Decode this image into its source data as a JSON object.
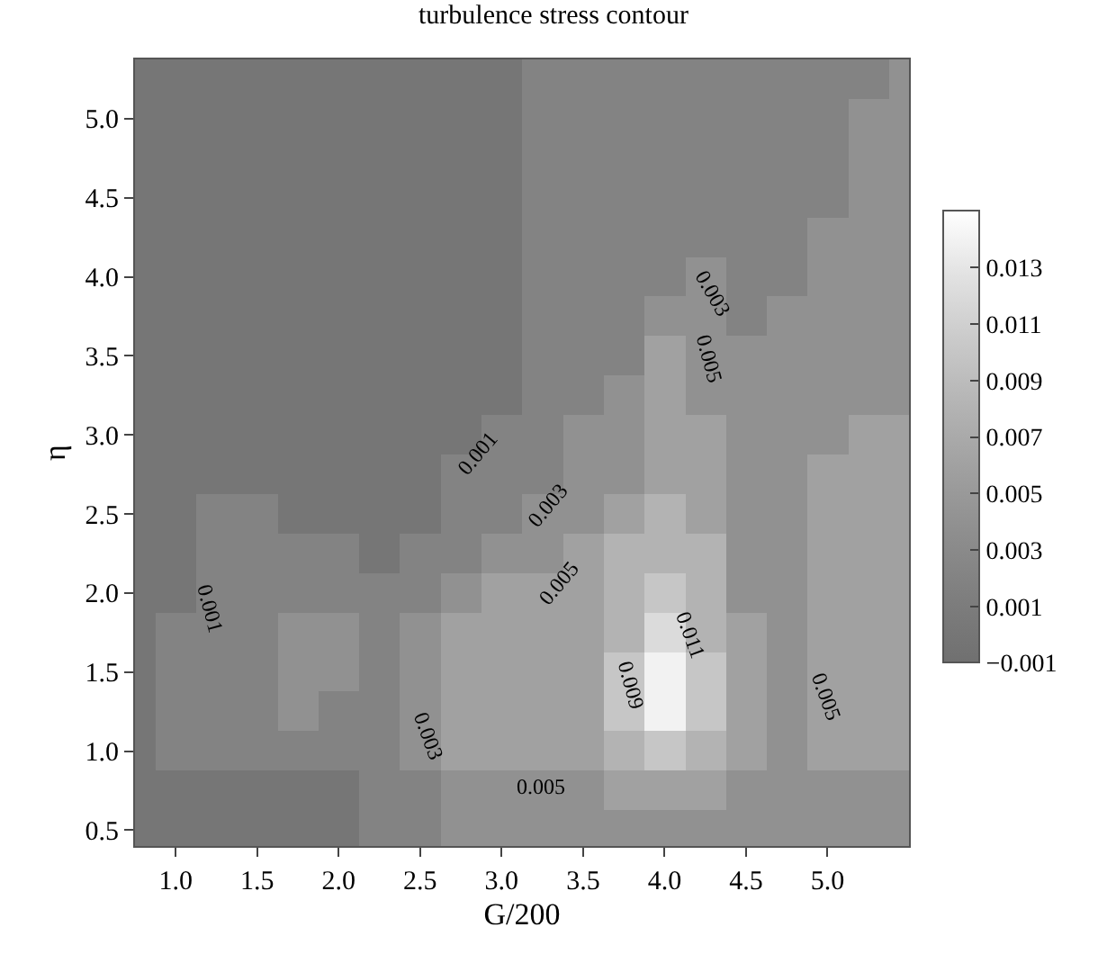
{
  "chart_data": {
    "type": "heatmap",
    "title": "turbulence stress contour",
    "xlabel": "G/200",
    "ylabel": "η",
    "x": [
      0.75,
      1.0,
      1.25,
      1.5,
      1.75,
      2.0,
      2.25,
      2.5,
      2.75,
      3.0,
      3.25,
      3.5,
      3.75,
      4.0,
      4.25,
      4.5,
      4.75,
      5.0,
      5.25,
      5.5
    ],
    "y": [
      5.25,
      5.0,
      4.75,
      4.5,
      4.25,
      4.0,
      3.75,
      3.5,
      3.25,
      3.0,
      2.75,
      2.5,
      2.25,
      2.0,
      1.75,
      1.5,
      1.25,
      1.0,
      0.75,
      0.5
    ],
    "annotations": [
      "0.001",
      "0.001",
      "0.003",
      "0.005",
      "0.003",
      "0.005",
      "0.003",
      "0.005",
      "0.011",
      "0.009",
      "0.005"
    ],
    "cells": [
      [
        0,
        0,
        0,
        0,
        0,
        0,
        0,
        0,
        0,
        0,
        0.002,
        0.002,
        0.002,
        0.002,
        0.002,
        0.002,
        0.002,
        0.002,
        0.002,
        0.004
      ],
      [
        0,
        0,
        0,
        0,
        0,
        0,
        0,
        0,
        0,
        0,
        0.002,
        0.002,
        0.002,
        0.002,
        0.002,
        0.002,
        0.002,
        0.002,
        0.004,
        0.004
      ],
      [
        0,
        0,
        0,
        0,
        0,
        0,
        0,
        0,
        0,
        0,
        0.002,
        0.002,
        0.002,
        0.002,
        0.002,
        0.002,
        0.002,
        0.002,
        0.004,
        0.004
      ],
      [
        0,
        0,
        0,
        0,
        0,
        0,
        0,
        0,
        0,
        0,
        0.002,
        0.002,
        0.002,
        0.002,
        0.002,
        0.002,
        0.002,
        0.002,
        0.004,
        0.004
      ],
      [
        0,
        0,
        0,
        0,
        0,
        0,
        0,
        0,
        0,
        0,
        0.002,
        0.002,
        0.002,
        0.002,
        0.002,
        0.002,
        0.002,
        0.004,
        0.004,
        0.004
      ],
      [
        0,
        0,
        0,
        0,
        0,
        0,
        0,
        0,
        0,
        0,
        0.002,
        0.002,
        0.002,
        0.002,
        0.004,
        0.002,
        0.002,
        0.004,
        0.004,
        0.004
      ],
      [
        0,
        0,
        0,
        0,
        0,
        0,
        0,
        0,
        0,
        0,
        0.002,
        0.002,
        0.002,
        0.004,
        0.004,
        0.002,
        0.004,
        0.004,
        0.004,
        0.004
      ],
      [
        0,
        0,
        0,
        0,
        0,
        0,
        0,
        0,
        0,
        0,
        0.002,
        0.002,
        0.002,
        0.006,
        0.004,
        0.004,
        0.004,
        0.004,
        0.004,
        0.004
      ],
      [
        0,
        0,
        0,
        0,
        0,
        0,
        0,
        0,
        0,
        0,
        0.002,
        0.002,
        0.004,
        0.006,
        0.004,
        0.004,
        0.004,
        0.004,
        0.004,
        0.004
      ],
      [
        0,
        0,
        0,
        0,
        0,
        0,
        0,
        0,
        0,
        0.002,
        0.002,
        0.004,
        0.004,
        0.006,
        0.006,
        0.004,
        0.004,
        0.004,
        0.006,
        0.006
      ],
      [
        0,
        0,
        0,
        0,
        0,
        0,
        0,
        0,
        0.002,
        0.002,
        0.002,
        0.004,
        0.004,
        0.006,
        0.006,
        0.004,
        0.004,
        0.006,
        0.006,
        0.006
      ],
      [
        0,
        0,
        0.002,
        0.002,
        0,
        0,
        0,
        0,
        0.002,
        0.002,
        0.004,
        0.004,
        0.006,
        0.008,
        0.006,
        0.004,
        0.004,
        0.006,
        0.006,
        0.006
      ],
      [
        0,
        0,
        0.002,
        0.002,
        0.002,
        0.002,
        0,
        0.002,
        0.002,
        0.004,
        0.004,
        0.006,
        0.008,
        0.008,
        0.008,
        0.004,
        0.004,
        0.006,
        0.006,
        0.006
      ],
      [
        0,
        0,
        0.002,
        0.002,
        0.002,
        0.002,
        0.002,
        0.002,
        0.004,
        0.006,
        0.006,
        0.006,
        0.008,
        0.01,
        0.008,
        0.004,
        0.004,
        0.006,
        0.006,
        0.006
      ],
      [
        0,
        0.002,
        0.002,
        0.002,
        0.004,
        0.004,
        0.002,
        0.004,
        0.006,
        0.006,
        0.006,
        0.006,
        0.008,
        0.012,
        0.008,
        0.006,
        0.004,
        0.006,
        0.006,
        0.006
      ],
      [
        0,
        0.002,
        0.002,
        0.002,
        0.004,
        0.004,
        0.002,
        0.004,
        0.006,
        0.006,
        0.006,
        0.006,
        0.01,
        0.014,
        0.01,
        0.006,
        0.004,
        0.006,
        0.006,
        0.006
      ],
      [
        0,
        0.002,
        0.002,
        0.002,
        0.004,
        0.002,
        0.002,
        0.004,
        0.006,
        0.006,
        0.006,
        0.006,
        0.01,
        0.014,
        0.01,
        0.006,
        0.004,
        0.006,
        0.006,
        0.006
      ],
      [
        0,
        0.002,
        0.002,
        0.002,
        0.002,
        0.002,
        0.002,
        0.004,
        0.006,
        0.006,
        0.006,
        0.006,
        0.008,
        0.01,
        0.008,
        0.006,
        0.004,
        0.006,
        0.006,
        0.006
      ],
      [
        0,
        0,
        0,
        0,
        0,
        0,
        0.002,
        0.002,
        0.004,
        0.004,
        0.004,
        0.004,
        0.006,
        0.006,
        0.006,
        0.004,
        0.004,
        0.004,
        0.004,
        0.004
      ],
      [
        0,
        0,
        0,
        0,
        0,
        0,
        0.002,
        0.002,
        0.004,
        0.004,
        0.004,
        0.004,
        0.004,
        0.004,
        0.004,
        0.004,
        0.004,
        0.004,
        0.004,
        0.004
      ]
    ],
    "colors": [
      "#707070",
      "#7e7e7e",
      "#8e8e8e",
      "#a0a0a0",
      "#b4b4b4",
      "#cacaca",
      "#e2e2e2",
      "#ffffff"
    ],
    "clim": [
      -0.001,
      0.015
    ],
    "cticks": [
      {
        "value": -0.001,
        "label": "−0.001"
      },
      0.001,
      0.003,
      0.005,
      0.007,
      0.009,
      0.011,
      0.013
    ],
    "xlim": [
      0.75,
      5.5
    ],
    "ylim": [
      0.4,
      5.375
    ],
    "xticks": [
      {
        "value": 1,
        "label": "1.0"
      },
      1.5,
      {
        "value": 2,
        "label": "2.0"
      },
      2.5,
      {
        "value": 3,
        "label": "3.0"
      },
      3.5,
      {
        "value": 4,
        "label": "4.0"
      },
      4.5,
      {
        "value": 5,
        "label": "5.0"
      }
    ],
    "yticks": [
      0.5,
      {
        "value": 1,
        "label": "1.0"
      },
      1.5,
      {
        "value": 2,
        "label": "2.0"
      },
      2.5,
      {
        "value": 3,
        "label": "3.0"
      },
      3.5,
      {
        "value": 4,
        "label": "4.0"
      },
      4.5,
      {
        "value": 5,
        "label": "5.0"
      }
    ]
  }
}
